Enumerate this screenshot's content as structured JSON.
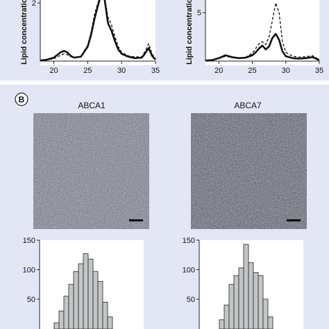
{
  "panel_b": {
    "letter": "B"
  },
  "chart_data": [
    {
      "id": "abca1-profile",
      "type": "line",
      "ylabel": "Lipid concentration",
      "xlim": [
        18,
        35
      ],
      "ylim": [
        0,
        2.1
      ],
      "x_ticks": [
        20,
        25,
        30,
        35
      ],
      "x_tick_labels": [
        "20",
        "25",
        "30",
        "35"
      ],
      "y_ticks": [
        2
      ],
      "y_tick_labels": [
        "2"
      ],
      "series": [
        {
          "style": "solid",
          "x": [
            18,
            19,
            20,
            21,
            21.5,
            22,
            22.5,
            23,
            24,
            25,
            25.5,
            26,
            26.5,
            27,
            27.5,
            28,
            28.5,
            29,
            29.5,
            30,
            31,
            32,
            33,
            33.5,
            34,
            34.5,
            35
          ],
          "y": [
            0.02,
            0.05,
            0.12,
            0.3,
            0.35,
            0.3,
            0.18,
            0.12,
            0.15,
            0.5,
            0.9,
            1.45,
            1.9,
            2.3,
            2.1,
            1.3,
            1.05,
            0.7,
            0.4,
            0.25,
            0.15,
            0.1,
            0.12,
            0.28,
            0.45,
            0.18,
            0.05
          ]
        },
        {
          "style": "dashed",
          "x": [
            18,
            19,
            20,
            21,
            21.5,
            22,
            22.5,
            23,
            24,
            25,
            25.5,
            26,
            26.5,
            27,
            27.5,
            28,
            28.5,
            29,
            29.5,
            30,
            31,
            32,
            33,
            33.5,
            34,
            34.5,
            35
          ],
          "y": [
            0.02,
            0.04,
            0.08,
            0.2,
            0.25,
            0.22,
            0.15,
            0.12,
            0.16,
            0.55,
            1.0,
            1.6,
            2.0,
            2.35,
            2.2,
            1.5,
            1.25,
            0.85,
            0.5,
            0.3,
            0.18,
            0.14,
            0.15,
            0.35,
            0.6,
            0.25,
            0.08
          ]
        }
      ]
    },
    {
      "id": "abca7-profile",
      "type": "line",
      "ylabel": "Lipid concentration",
      "xlim": [
        18,
        35
      ],
      "ylim": [
        0,
        6.3
      ],
      "x_ticks": [
        20,
        25,
        30,
        35
      ],
      "x_tick_labels": [
        "20",
        "25",
        "30",
        "35"
      ],
      "y_ticks": [
        5
      ],
      "y_tick_labels": [
        "5"
      ],
      "series": [
        {
          "style": "solid",
          "x": [
            18,
            19,
            20,
            21,
            22,
            23,
            24,
            25,
            25.5,
            26,
            26.5,
            27,
            27.5,
            28,
            28.5,
            29,
            29.5,
            30,
            31,
            32,
            33,
            34,
            35
          ],
          "y": [
            0.05,
            0.1,
            0.3,
            0.6,
            0.4,
            0.3,
            0.35,
            0.6,
            0.9,
            1.3,
            1.6,
            1.2,
            1.5,
            2.4,
            2.8,
            2.2,
            1.0,
            0.5,
            0.3,
            0.25,
            0.3,
            0.4,
            0.1
          ]
        },
        {
          "style": "dashed",
          "x": [
            18,
            19,
            20,
            21,
            22,
            23,
            24,
            25,
            25.5,
            26,
            26.5,
            27,
            27.5,
            28,
            28.5,
            29,
            29.5,
            30,
            31,
            32,
            33,
            34,
            35
          ],
          "y": [
            0.05,
            0.1,
            0.25,
            0.5,
            0.35,
            0.3,
            0.4,
            0.8,
            1.3,
            1.8,
            2.0,
            1.7,
            2.5,
            4.2,
            6.0,
            5.0,
            2.0,
            0.9,
            0.5,
            0.4,
            0.45,
            0.55,
            0.15
          ]
        }
      ]
    },
    {
      "id": "abca1-histogram",
      "type": "bar",
      "title": "ABCA1",
      "ylim": [
        0,
        150
      ],
      "y_ticks": [
        50,
        100,
        150
      ],
      "y_tick_labels": [
        "50",
        "100",
        "150"
      ],
      "values": [
        10,
        30,
        55,
        75,
        97,
        110,
        127,
        118,
        97,
        80,
        45,
        20
      ]
    },
    {
      "id": "abca7-histogram",
      "type": "bar",
      "title": "ABCA7",
      "ylim": [
        0,
        150
      ],
      "y_ticks": [
        50,
        100,
        150
      ],
      "y_tick_labels": [
        "50",
        "100",
        "150"
      ],
      "values": [
        15,
        40,
        75,
        90,
        103,
        143,
        112,
        95,
        90,
        50,
        20
      ]
    }
  ]
}
